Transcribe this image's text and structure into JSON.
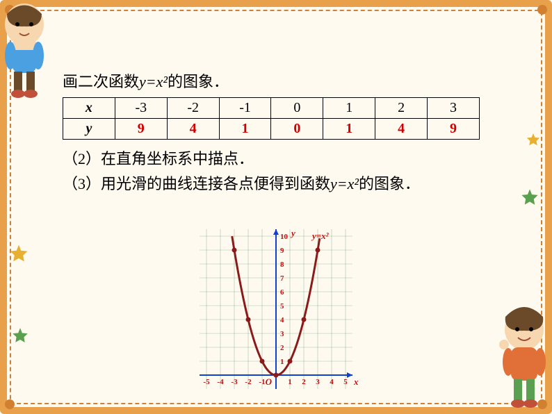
{
  "title_prefix": "画二次函数",
  "title_equation": "y=x²",
  "title_suffix": "的图象．",
  "table": {
    "x_header": "x",
    "y_header": "y",
    "x_values": [
      "-3",
      "-2",
      "-1",
      "0",
      "1",
      "2",
      "3"
    ],
    "y_values": [
      "9",
      "4",
      "1",
      "0",
      "1",
      "4",
      "9"
    ],
    "y_color": "#d00000"
  },
  "step2": "（2）在直角坐标系中描点．",
  "step3_prefix": "（3）用光滑的曲线连接各点便得到函数",
  "step3_equation": "y=x²",
  "step3_suffix": "的图象．",
  "chart": {
    "type": "line",
    "x_ticks": [
      "-5",
      "-4",
      "-3",
      "-2",
      "-1",
      "1",
      "2",
      "3",
      "4",
      "5"
    ],
    "y_ticks": [
      "1",
      "2",
      "3",
      "4",
      "5",
      "6",
      "7",
      "8",
      "9",
      "10"
    ],
    "x_axis_label": "x",
    "y_axis_label": "y",
    "origin_label": "O",
    "curve_label": "y=x²",
    "points": [
      {
        "x": -3,
        "y": 9
      },
      {
        "x": -2,
        "y": 4
      },
      {
        "x": -1,
        "y": 1
      },
      {
        "x": 0,
        "y": 0
      },
      {
        "x": 1,
        "y": 1
      },
      {
        "x": 2,
        "y": 4
      },
      {
        "x": 3,
        "y": 9
      }
    ],
    "xlim": [
      -5.5,
      5.5
    ],
    "ylim": [
      -1,
      10.5
    ],
    "grid_color": "#4a8c5a",
    "grid_opacity": 0.5,
    "axis_color": "#1040d0",
    "curve_color": "#8b1a1a",
    "point_color": "#8b1a1a",
    "tick_color": "#c01010",
    "label_color": "#c01010",
    "background_color": "#fffaf0",
    "curve_width": 3,
    "tick_fontsize": 11,
    "label_fontsize": 13
  },
  "frame": {
    "border_color": "#e8a04a",
    "dash_color": "#d08030",
    "background": "#fffaf0"
  }
}
